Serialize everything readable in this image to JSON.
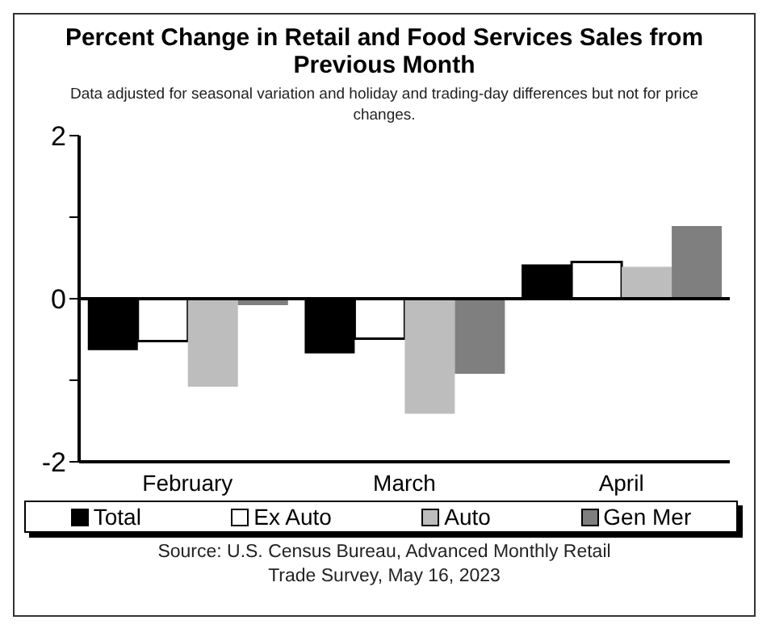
{
  "chart_data": {
    "type": "bar",
    "title": "Percent Change in Retail and Food Services Sales from Previous Month",
    "subtitle": "Data adjusted for seasonal variation and holiday and trading-day differences but not for price changes.",
    "categories": [
      "February",
      "March",
      "April"
    ],
    "series": [
      {
        "name": "Total",
        "color": "#000000",
        "values": [
          -0.63,
          -0.67,
          0.42
        ]
      },
      {
        "name": "Ex Auto",
        "color": "#ffffff",
        "values": [
          -0.52,
          -0.49,
          0.45
        ]
      },
      {
        "name": "Auto",
        "color": "#bdbdbd",
        "values": [
          -1.08,
          -1.41,
          0.39
        ]
      },
      {
        "name": "Gen Mer",
        "color": "#7f7f7f",
        "values": [
          -0.08,
          -0.92,
          0.89
        ]
      }
    ],
    "ylim": [
      -2,
      2
    ],
    "yticks": [
      -2,
      {
        "value": -1,
        "label": null
      },
      0,
      {
        "value": 1,
        "label": null
      },
      2
    ],
    "grid": false,
    "ref_lines": [
      {
        "axis": "y",
        "value": 0,
        "color": "#000000"
      }
    ],
    "legend": "bottom",
    "annotations": [
      "Source: U.S. Census Bureau, Advanced Monthly Retail Trade Survey, May 16, 2023"
    ]
  }
}
